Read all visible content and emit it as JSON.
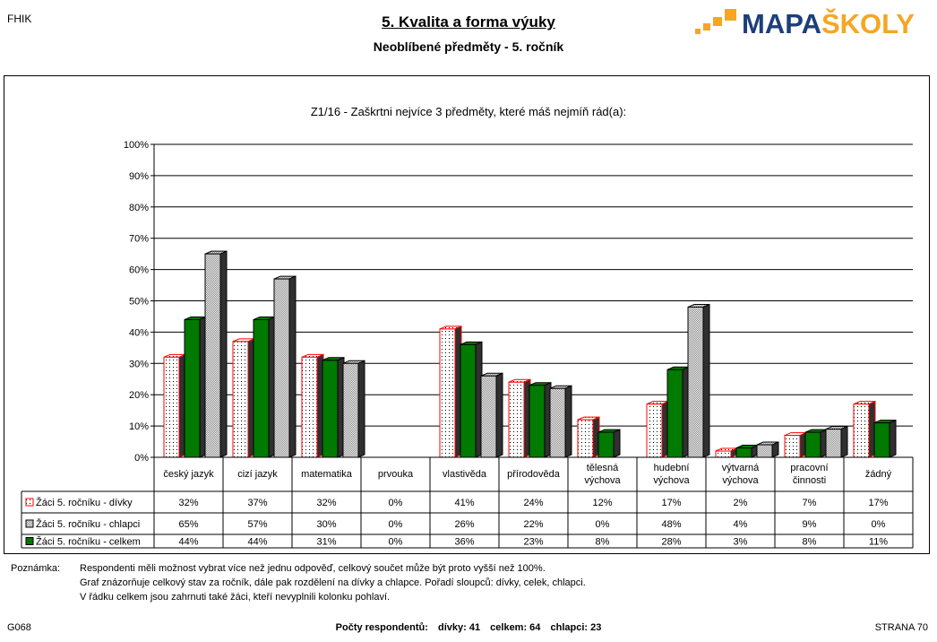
{
  "header": {
    "corner": "FHIK",
    "title": "5. Kvalita a forma výuky",
    "subtitle": "Neoblíbené předměty -  5. ročník",
    "logo_a": "MAPA",
    "logo_b": "ŠKOLY"
  },
  "colors": {
    "logo_orange": "#f5a623",
    "logo_blue": "#1c3f7a",
    "divky_edge": "#ff0000",
    "celkem_fill": "#007a00",
    "chlapci_fill": "#c8c8c8"
  },
  "chart_data": {
    "type": "bar",
    "title": "Z1/16 - Zaškrtni nejvíce 3 předměty, které máš nejmíň rád(a):",
    "categories": [
      [
        "český jazyk"
      ],
      [
        "cizí jazyk"
      ],
      [
        "matematika"
      ],
      [
        "prvouka"
      ],
      [
        "vlastivěda"
      ],
      [
        "přírodověda"
      ],
      [
        "tělesná",
        "výchova"
      ],
      [
        "hudební",
        "výchova"
      ],
      [
        "výtvarná",
        "výchova"
      ],
      [
        "pracovní",
        "činnosti"
      ],
      [
        "žádný"
      ]
    ],
    "ylim": [
      0,
      100
    ],
    "yticks": [
      "0%",
      "10%",
      "20%",
      "30%",
      "40%",
      "50%",
      "60%",
      "70%",
      "80%",
      "90%",
      "100%"
    ],
    "grid": true,
    "legend": "table-below",
    "series": [
      {
        "name": "Žáci 5. ročníku - dívky",
        "key": "divky",
        "values": [
          32,
          37,
          32,
          0,
          41,
          24,
          12,
          17,
          2,
          7,
          17
        ]
      },
      {
        "name": "Žáci 5. ročníku - chlapci",
        "key": "chlapci",
        "values": [
          65,
          57,
          30,
          0,
          26,
          22,
          0,
          48,
          4,
          9,
          0
        ]
      },
      {
        "name": "Žáci 5. ročníku - celkem",
        "key": "celkem",
        "values": [
          44,
          44,
          31,
          0,
          36,
          23,
          8,
          28,
          3,
          8,
          11
        ]
      }
    ],
    "bar_order": [
      "divky",
      "celkem",
      "chlapci"
    ]
  },
  "note": {
    "label": "Poznámka:",
    "lines": [
      "Respondenti měli možnost vybrat více než jednu odpověď, celkový součet může být proto vyšší než 100%.",
      "Graf znázorňuje celkový stav za ročník, dále pak rozdělení na dívky a chlapce. Pořadí sloupců: dívky, celek, chlapci.",
      "V řádku celkem jsou zahrnuti také žáci, kteří nevyplnili kolonku pohlaví."
    ]
  },
  "footer": {
    "code": "G068",
    "counts_label": "Počty respondentů:",
    "divky": "dívky: 41",
    "celkem": "celkem: 64",
    "chlapci": "chlapci: 23",
    "page": "STRANA  70"
  }
}
